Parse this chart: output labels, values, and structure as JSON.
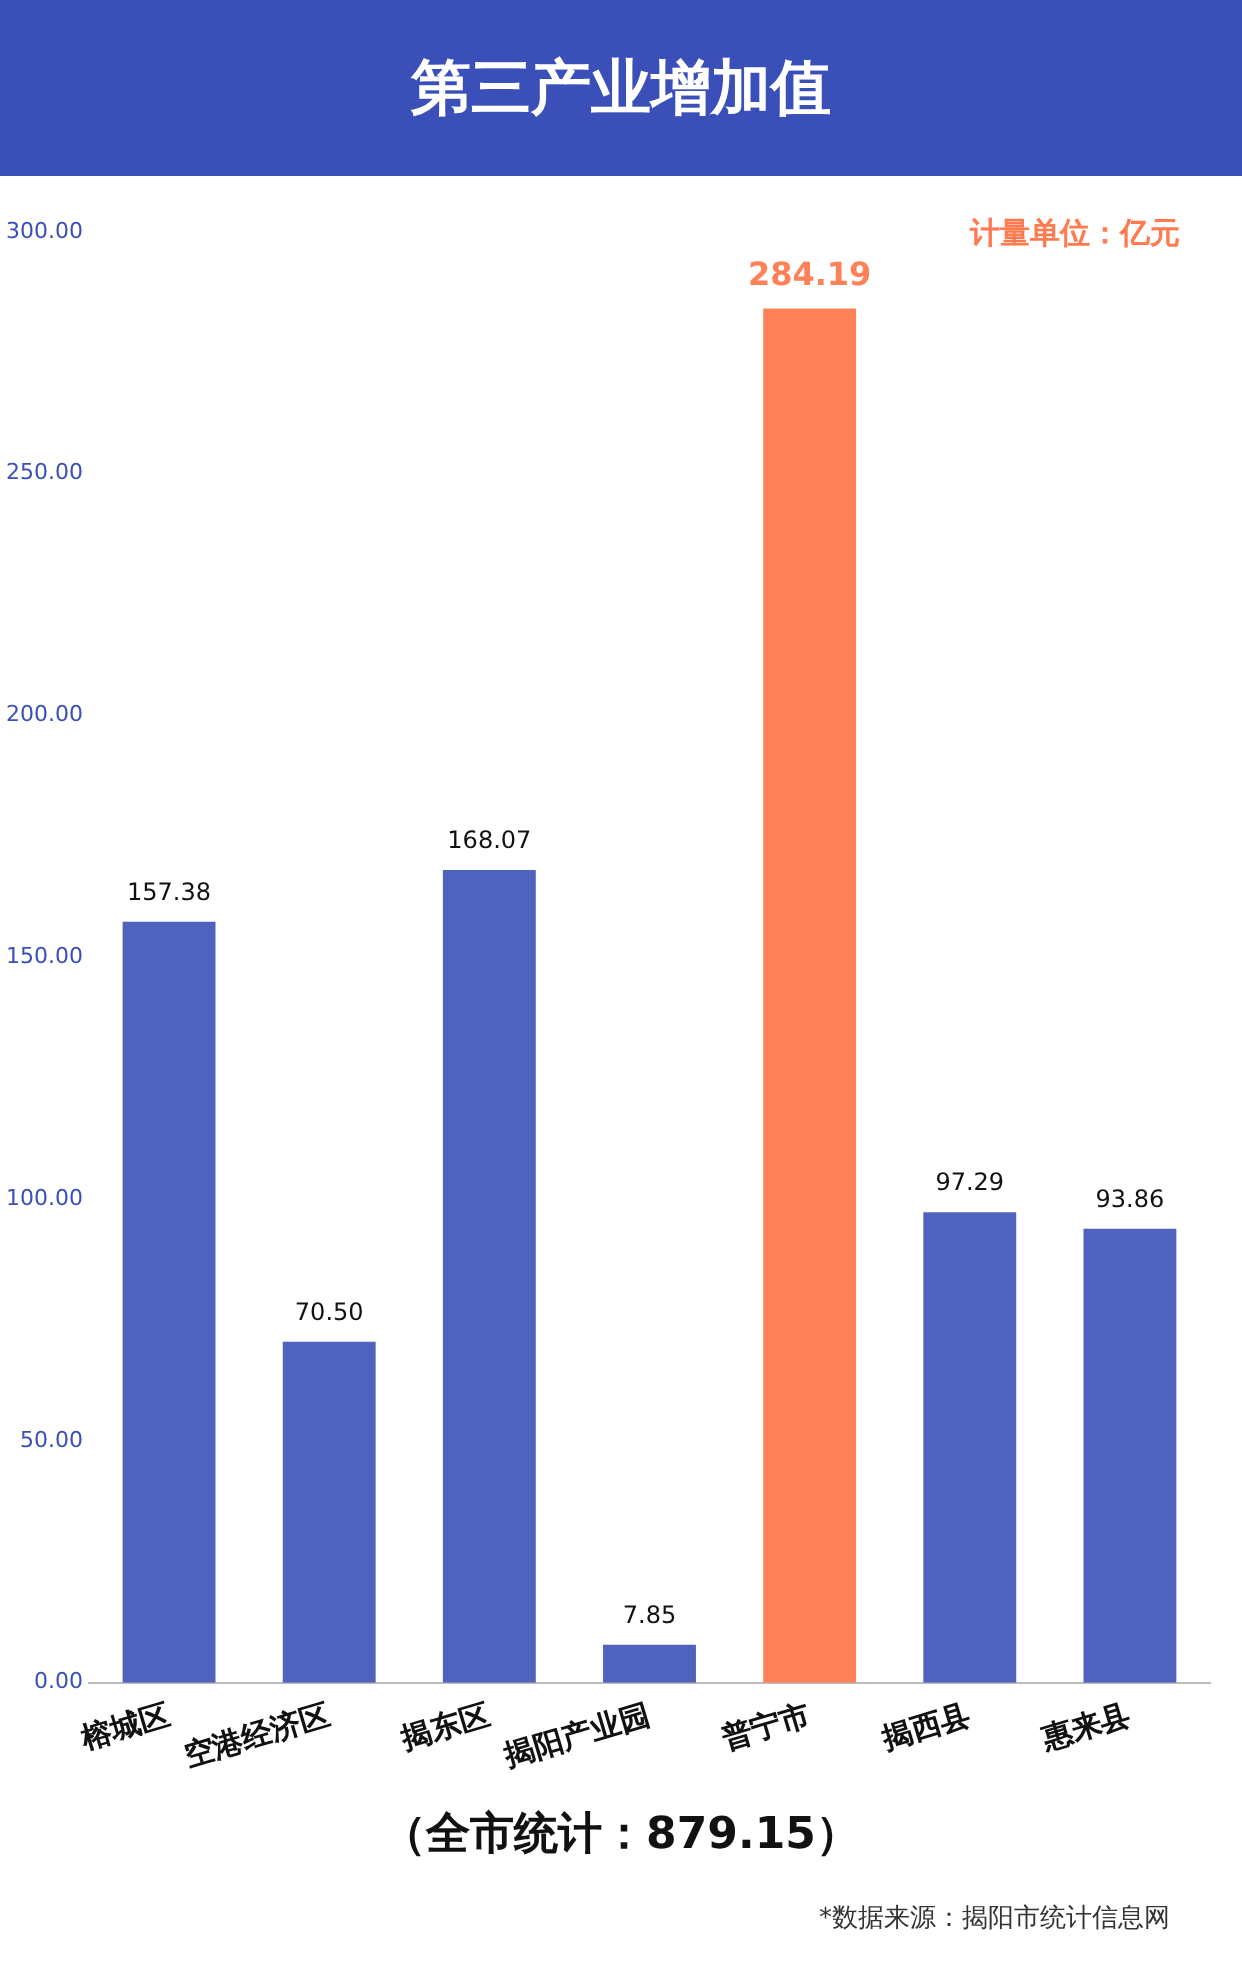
{
  "chart_data": {
    "type": "bar",
    "title": "第三产业增加值",
    "categories": [
      "榕城区",
      "空港经济区",
      "揭东区",
      "揭阳产业园",
      "普宁市",
      "揭西县",
      "惠来县"
    ],
    "values": [
      157.38,
      70.5,
      168.07,
      7.85,
      284.19,
      97.29,
      93.86
    ],
    "value_labels": [
      "157.38",
      "70.50",
      "168.07",
      "7.85",
      "284.19",
      "97.29",
      "93.86"
    ],
    "colors": [
      "#4f62bd",
      "#4f62bd",
      "#4f62bd",
      "#4f62bd",
      "#ff8157",
      "#4f62bd",
      "#4f62bd"
    ],
    "ylim": [
      0,
      300
    ],
    "yticks": [
      {
        "value": 0,
        "label": "0.00"
      },
      {
        "value": 50,
        "label": "50.00"
      },
      {
        "value": 100,
        "label": "100.00"
      },
      {
        "value": 150,
        "label": "150.00"
      },
      {
        "value": 200,
        "label": "200.00"
      },
      {
        "value": 250,
        "label": "250.00"
      },
      {
        "value": 300,
        "label": "300.00"
      }
    ],
    "grid": false,
    "legend": false,
    "annotations": [
      "计量单位：亿元",
      "（全市统计：879.15）",
      "*数据来源：揭阳市统计信息网"
    ]
  }
}
